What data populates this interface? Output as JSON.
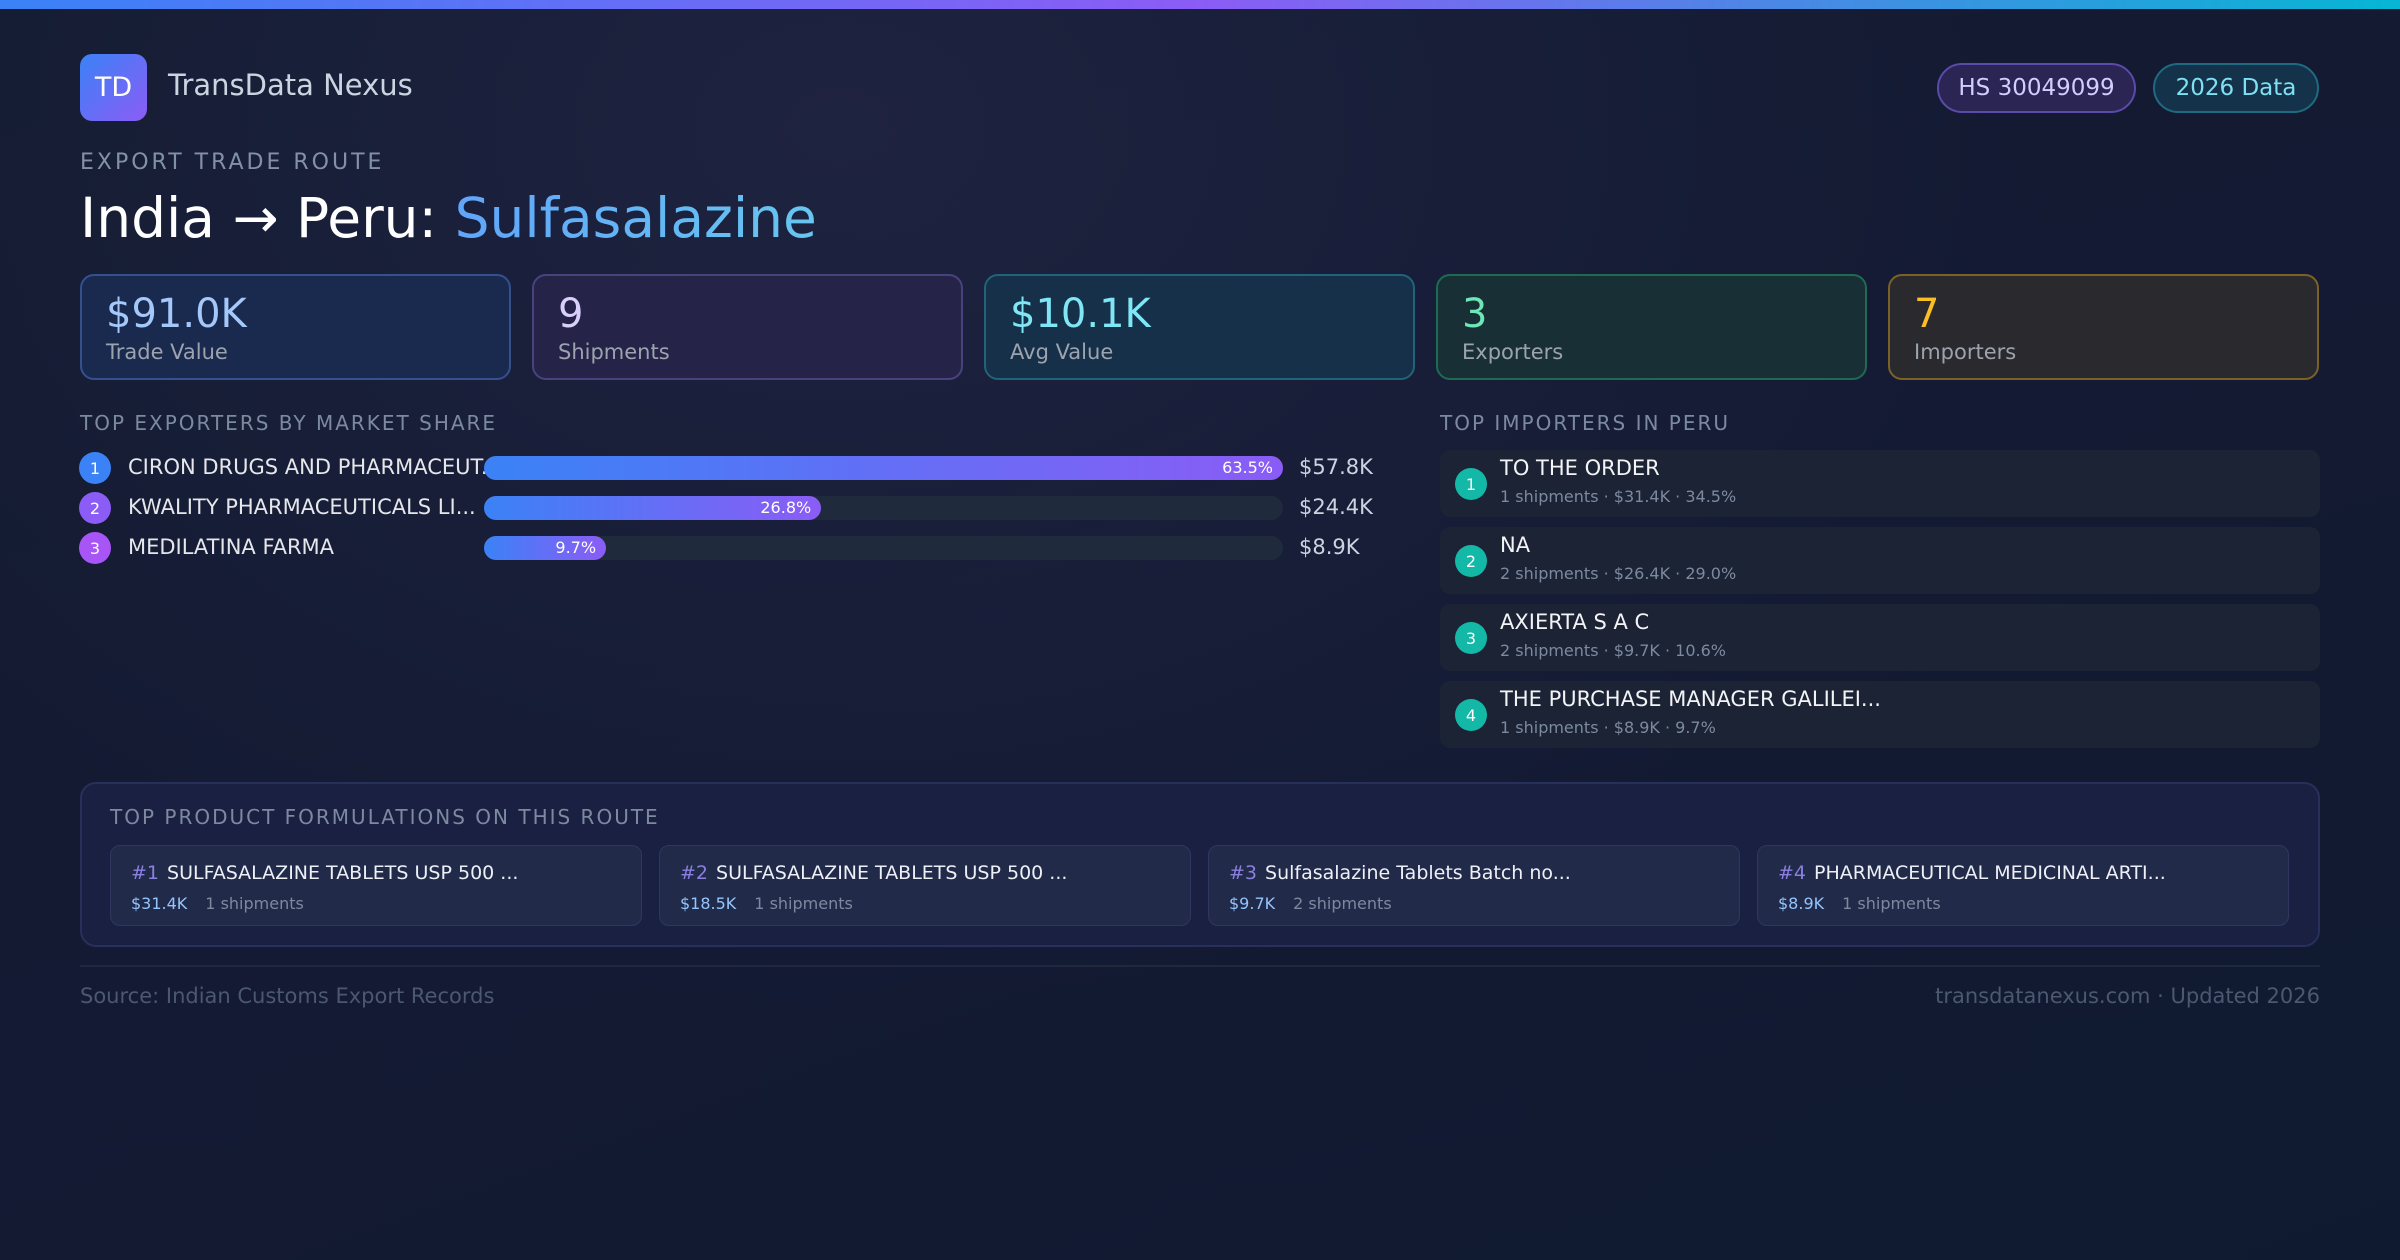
{
  "header": {
    "logo": "TD",
    "brand": "TransData Nexus",
    "badges": [
      "HS 30049099",
      "2026 Data"
    ],
    "eyebrow": "EXPORT TRADE ROUTE",
    "title": "India → Peru: ",
    "title_product": "Sulfasalazine"
  },
  "kpis": [
    {
      "value": "$91.0K",
      "label": "Trade Value"
    },
    {
      "value": "9",
      "label": "Shipments"
    },
    {
      "value": "$10.1K",
      "label": "Avg Value"
    },
    {
      "value": "3",
      "label": "Exporters"
    },
    {
      "value": "7",
      "label": "Importers"
    }
  ],
  "exporters": {
    "title": "TOP EXPORTERS BY MARKET SHARE",
    "items": [
      {
        "rank": "1",
        "name": "CIRON DRUGS AND PHARMACEUT...",
        "share": 63.5,
        "share_label": "63.5%",
        "value": "$57.8K"
      },
      {
        "rank": "2",
        "name": "KWALITY PHARMACEUTICALS LI...",
        "share": 26.8,
        "share_label": "26.8%",
        "value": "$24.4K"
      },
      {
        "rank": "3",
        "name": "MEDILATINA FARMA",
        "share": 9.7,
        "share_label": "9.7%",
        "value": "$8.9K"
      }
    ]
  },
  "importers": {
    "title": "TOP IMPORTERS IN PERU",
    "items": [
      {
        "rank": "1",
        "name": "TO THE ORDER",
        "details": "1 shipments · $31.4K · 34.5%"
      },
      {
        "rank": "2",
        "name": "NA",
        "details": "2 shipments · $26.4K · 29.0%"
      },
      {
        "rank": "3",
        "name": "AXIERTA S A C",
        "details": "2 shipments · $9.7K · 10.6%"
      },
      {
        "rank": "4",
        "name": "THE PURCHASE MANAGER GALILEI...",
        "details": "1 shipments · $8.9K · 9.7%"
      }
    ]
  },
  "formulations": {
    "title": "TOP PRODUCT FORMULATIONS ON THIS ROUTE",
    "items": [
      {
        "rank": "#1",
        "name": "SULFASALAZINE TABLETS USP 500 ...",
        "value": "$31.4K",
        "shipments": "1 shipments"
      },
      {
        "rank": "#2",
        "name": "SULFASALAZINE TABLETS USP 500 ...",
        "value": "$18.5K",
        "shipments": "1 shipments"
      },
      {
        "rank": "#3",
        "name": "Sulfasalazine Tablets Batch no...",
        "value": "$9.7K",
        "shipments": "2 shipments"
      },
      {
        "rank": "#4",
        "name": "PHARMACEUTICAL MEDICINAL ARTI...",
        "value": "$8.9K",
        "shipments": "1 shipments"
      }
    ]
  },
  "footer": {
    "source": "Source: Indian Customs Export Records",
    "site": "transdatanexus.com · Updated 2026"
  }
}
